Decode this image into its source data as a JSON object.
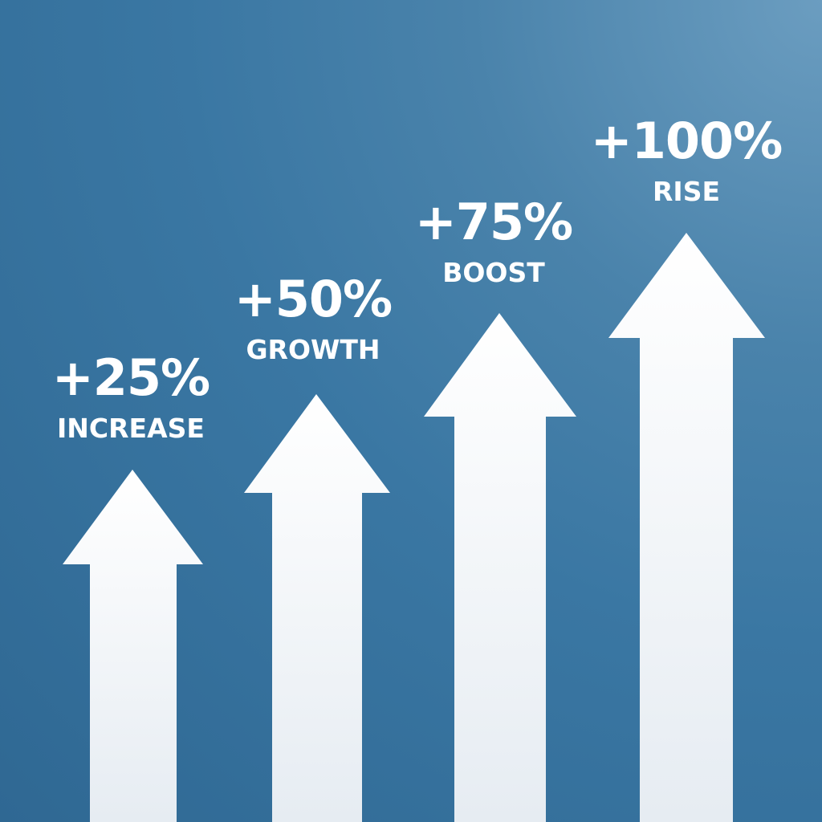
{
  "arrows": [
    {
      "value": "+25%",
      "label": "INCREASE",
      "level": 0.25
    },
    {
      "value": "+50%",
      "label": "GROWTH",
      "level": 0.5
    },
    {
      "value": "+75%",
      "label": "BOOST",
      "level": 0.75
    },
    {
      "value": "+100%",
      "label": "RISE",
      "level": 1.0
    }
  ],
  "colors": {
    "arrow": "#ffffff",
    "arrow_bottom": "#e6ecf2",
    "background_dark": "#2f6893",
    "background_light": "#6b9dc0"
  }
}
